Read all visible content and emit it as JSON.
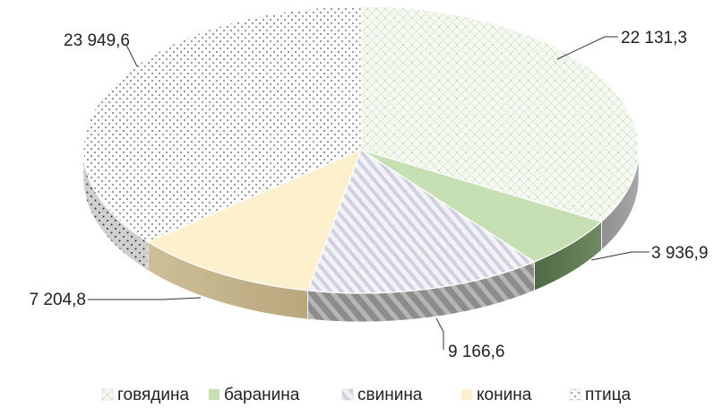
{
  "chart_data": {
    "type": "pie",
    "style": "3d",
    "categories": [
      "говядина",
      "баранина",
      "свинина",
      "конина",
      "птица"
    ],
    "values": [
      22131.3,
      3936.9,
      9166.6,
      7204.8,
      23949.6
    ],
    "labels": [
      "22 131,3",
      "3 936,9",
      "9 166,6",
      "7 204,8",
      "23 949,6"
    ],
    "colors": [
      "#dfeedd",
      "#c6e0b4",
      "#d9dae6",
      "#fdf0cc",
      "#e8e8e8"
    ],
    "side_colors": [
      "#9e9e9e",
      "#5c7751",
      "#8a8a8a",
      "#c9b891",
      "#bdbdbd"
    ],
    "patterns": [
      "grid",
      "solid",
      "diagonal-stripes",
      "solid",
      "dots"
    ],
    "title": "",
    "legend_position": "bottom"
  }
}
